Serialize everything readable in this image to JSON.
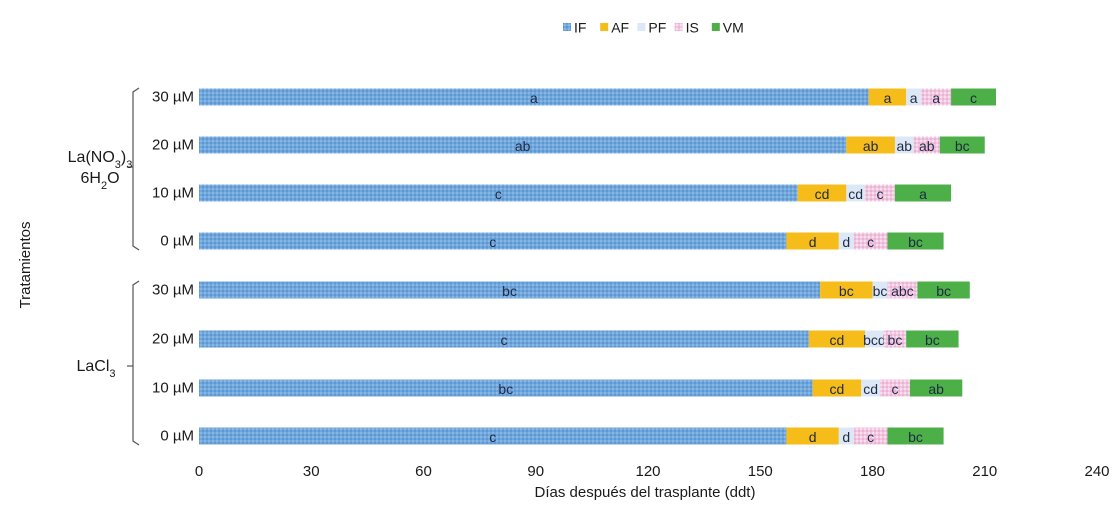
{
  "chart_data": {
    "type": "bar",
    "orientation": "horizontal",
    "stacked": true,
    "xlabel": "Días después del trasplante (ddt)",
    "ylabel": "Tratamientos",
    "xlim": [
      0,
      240
    ],
    "xticks": [
      0,
      30,
      60,
      90,
      120,
      150,
      180,
      210,
      240
    ],
    "legend_position": "top-center",
    "grid": false,
    "series": [
      {
        "name": "IF",
        "color": "#6fa6dc",
        "pattern": "dots"
      },
      {
        "name": "AF",
        "color": "#f6bd1a"
      },
      {
        "name": "PF",
        "color": "#dce8f5"
      },
      {
        "name": "IS",
        "color": "#f2c6e0",
        "pattern": "dots"
      },
      {
        "name": "VM",
        "color": "#4caf48"
      }
    ],
    "groups": [
      {
        "label_main": "La(NO",
        "label_sub1": "3",
        "label_close": ")",
        "label_sub2": "3",
        "label_line2_main": "6H",
        "label_line2_sub": "2",
        "label_line2_end": "O",
        "rows": [
          {
            "category": "30 µM",
            "values": [
              179,
              10,
              4,
              8,
              12
            ],
            "labels": [
              "a",
              "a",
              "a",
              "a",
              "c"
            ]
          },
          {
            "category": "20 µM",
            "values": [
              173,
              13,
              5,
              7,
              12
            ],
            "labels": [
              "ab",
              "ab",
              "ab",
              "ab",
              "bc"
            ]
          },
          {
            "category": "10 µM",
            "values": [
              160,
              13,
              5,
              8,
              15
            ],
            "labels": [
              "c",
              "cd",
              "cd",
              "c",
              "a"
            ]
          },
          {
            "category": "0 µM",
            "values": [
              157,
              14,
              4,
              9,
              15
            ],
            "labels": [
              "c",
              "d",
              "d",
              "c",
              "bc"
            ]
          }
        ]
      },
      {
        "label_main": "LaCl",
        "label_sub1": "3",
        "rows": [
          {
            "category": "30 µM",
            "values": [
              166,
              14,
              4,
              8,
              14
            ],
            "labels": [
              "bc",
              "bc",
              "bc",
              "abc",
              "bc"
            ]
          },
          {
            "category": "20 µM",
            "values": [
              163,
              15,
              5,
              6,
              14
            ],
            "labels": [
              "c",
              "cd",
              "bcd",
              "bc",
              "bc"
            ]
          },
          {
            "category": "10 µM",
            "values": [
              164,
              13,
              5,
              8,
              14
            ],
            "labels": [
              "bc",
              "cd",
              "cd",
              "c",
              "ab"
            ]
          },
          {
            "category": "0 µM",
            "values": [
              157,
              14,
              4,
              9,
              15
            ],
            "labels": [
              "c",
              "d",
              "d",
              "c",
              "bc"
            ]
          }
        ]
      }
    ]
  }
}
